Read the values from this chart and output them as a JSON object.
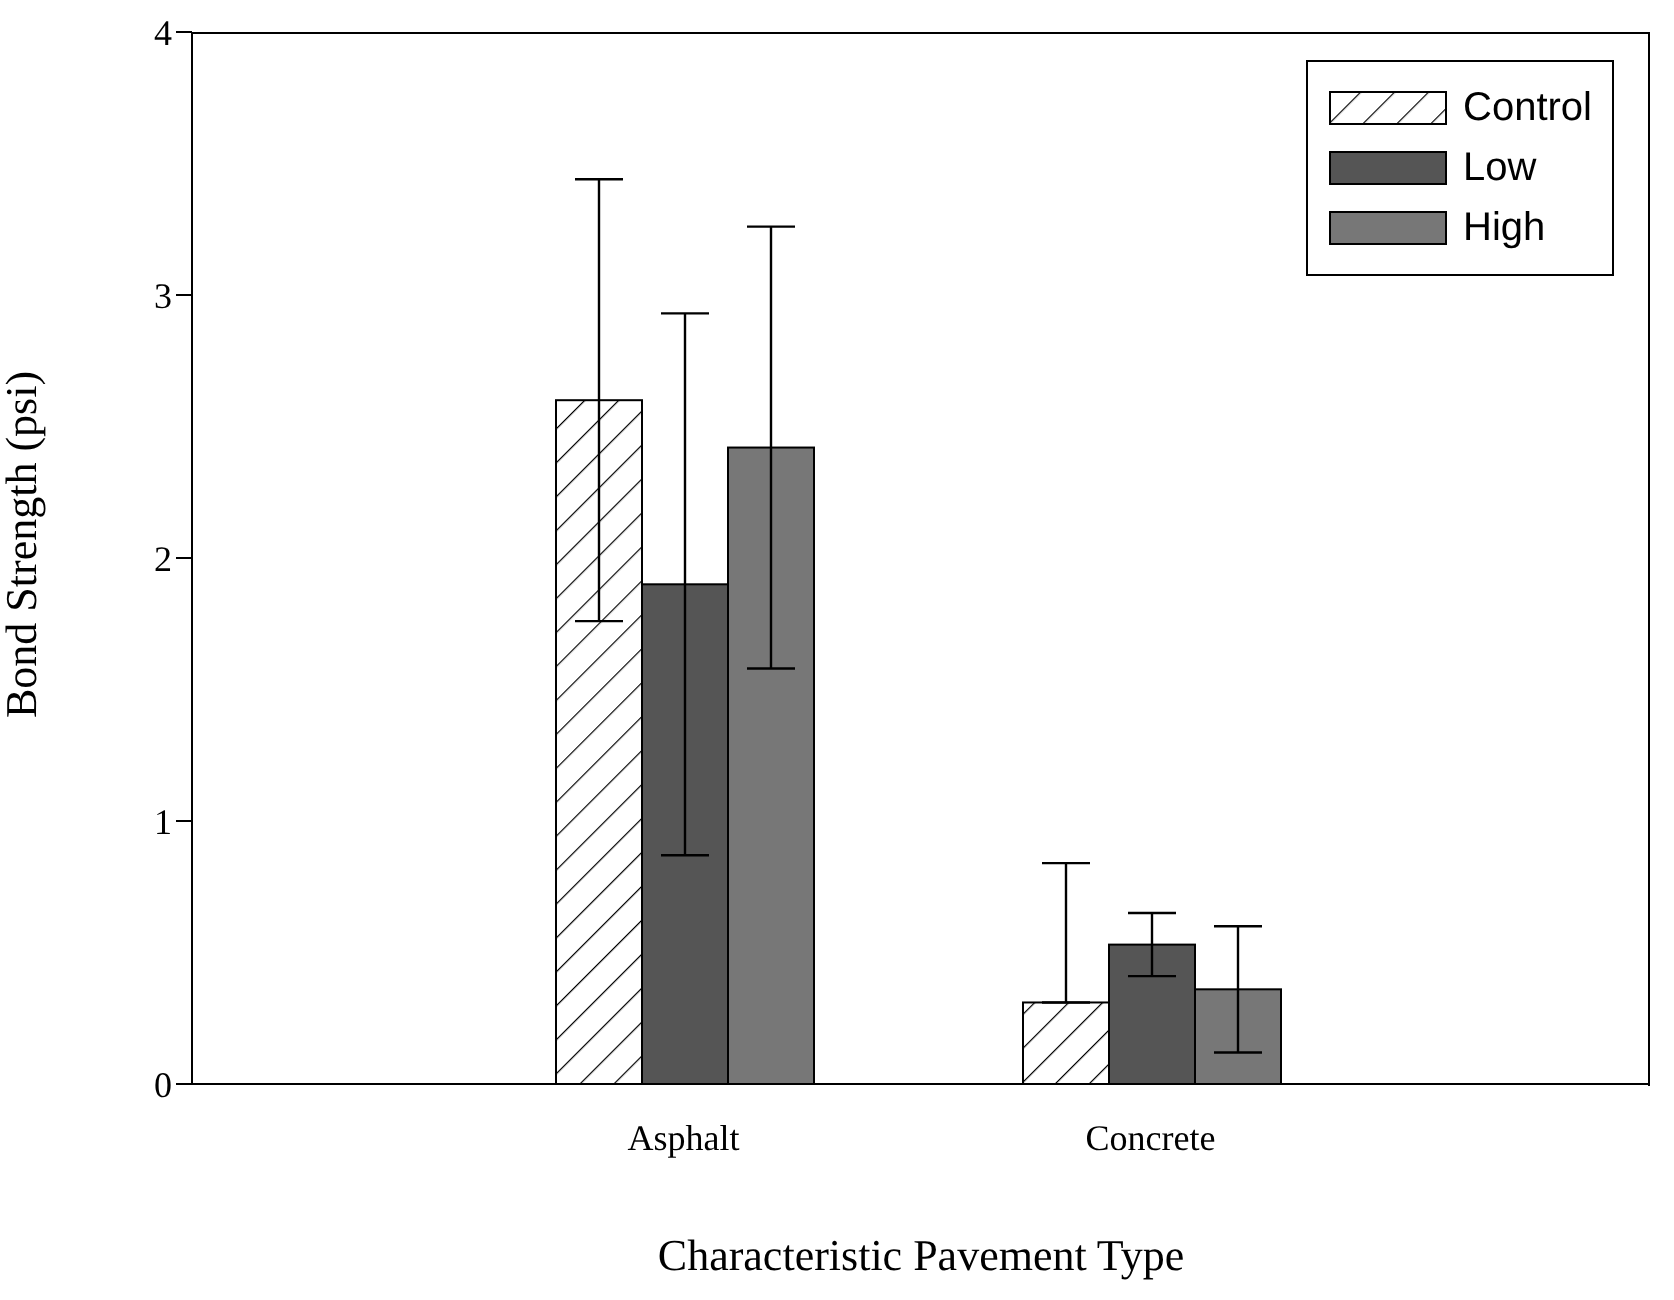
{
  "chart_data": {
    "type": "bar",
    "xlabel": "Characteristic Pavement Type",
    "ylabel": "Bond Strength (psi)",
    "categories": [
      "Asphalt",
      "Concrete"
    ],
    "series": [
      {
        "name": "Control",
        "color": "#ffffff",
        "values": [
          2.6,
          0.31
        ],
        "errors": [
          0.84,
          [
            0.31,
            0.84
          ]
        ]
      },
      {
        "name": "Low",
        "color": "#555555",
        "values": [
          1.9,
          0.53
        ],
        "errors": [
          1.03,
          0.12
        ]
      },
      {
        "name": "High",
        "color": "#777777",
        "values": [
          2.42,
          0.36
        ],
        "errors": [
          0.84,
          0.24
        ]
      }
    ],
    "ylim": [
      0,
      4
    ],
    "yticks": [
      0,
      1,
      2,
      3,
      4
    ],
    "grid": false,
    "legend": "top right"
  }
}
